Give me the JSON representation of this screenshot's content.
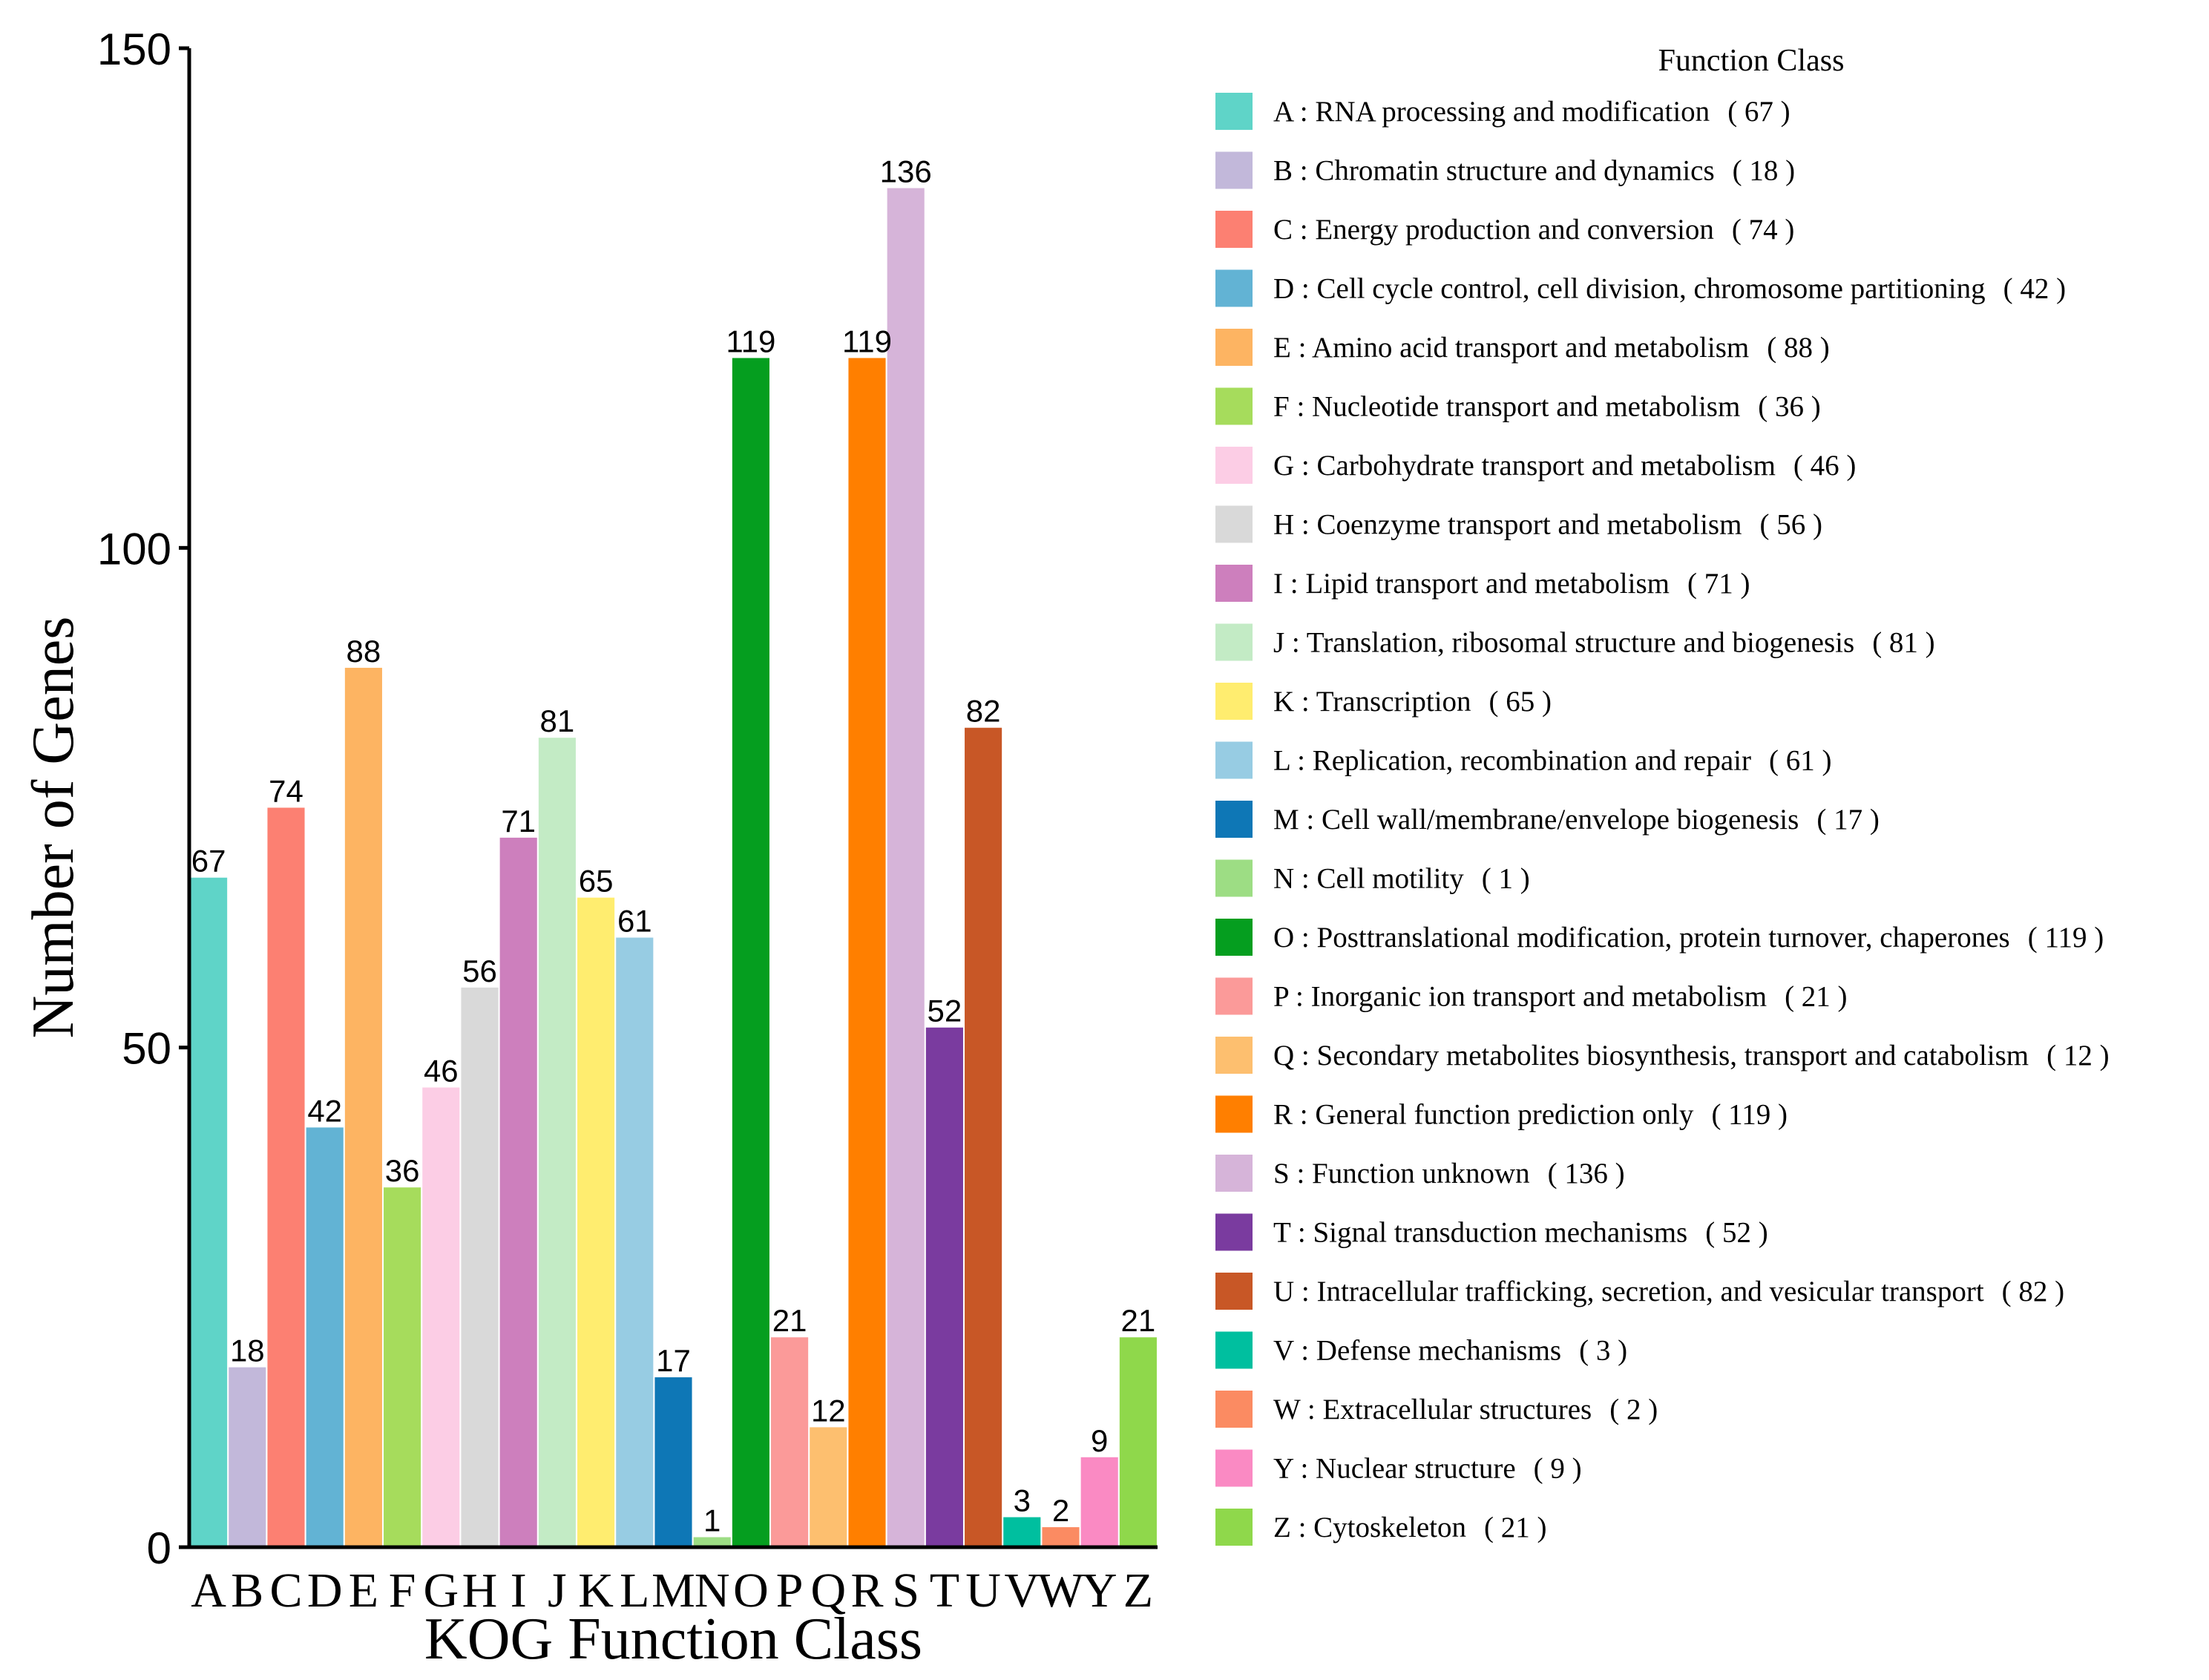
{
  "chart_data": {
    "type": "bar",
    "title": "",
    "xlabel": "KOG Function Class",
    "ylabel": "Number of Genes",
    "ylim": [
      0,
      150
    ],
    "yticks": [
      0,
      50,
      100,
      150
    ],
    "legend_title": "Function Class",
    "legend_position": "right",
    "categories": [
      "A",
      "B",
      "C",
      "D",
      "E",
      "F",
      "G",
      "H",
      "I",
      "J",
      "K",
      "L",
      "M",
      "N",
      "O",
      "P",
      "Q",
      "R",
      "S",
      "T",
      "U",
      "V",
      "W",
      "Y",
      "Z"
    ],
    "values": [
      67,
      18,
      74,
      42,
      88,
      36,
      46,
      56,
      71,
      81,
      65,
      61,
      17,
      1,
      119,
      21,
      12,
      119,
      136,
      52,
      82,
      3,
      2,
      9,
      21
    ],
    "descriptions": [
      "A : RNA processing and modification",
      "B : Chromatin structure and dynamics",
      "C : Energy production and conversion",
      "D : Cell cycle control, cell division, chromosome partitioning",
      "E : Amino acid transport and metabolism",
      "F : Nucleotide transport and metabolism",
      "G : Carbohydrate transport and metabolism",
      "H : Coenzyme transport and metabolism",
      "I : Lipid transport and metabolism",
      "J : Translation, ribosomal structure and biogenesis",
      "K : Transcription",
      "L : Replication, recombination and repair",
      "M : Cell wall/membrane/envelope biogenesis",
      "N : Cell motility",
      "O : Posttranslational modification, protein turnover, chaperones",
      "P : Inorganic ion transport and metabolism",
      "Q : Secondary metabolites biosynthesis, transport and catabolism",
      "R : General function prediction only",
      "S : Function unknown",
      "T : Signal transduction mechanisms",
      "U : Intracellular trafficking, secretion, and vesicular transport",
      "V : Defense mechanisms",
      "W : Extracellular structures",
      "Y : Nuclear structure",
      "Z : Cytoskeleton"
    ],
    "colors": [
      "#5fd4c8",
      "#c2b8da",
      "#fc8072",
      "#62b3d4",
      "#fdb462",
      "#a6dc5c",
      "#fccde5",
      "#d9d9d9",
      "#cd7fbd",
      "#c3ebc5",
      "#ffed6f",
      "#97cce3",
      "#0e77b6",
      "#9ddd84",
      "#059e1f",
      "#fb9a99",
      "#fdbf6f",
      "#ff7f00",
      "#d6b4d9",
      "#7a3b9f",
      "#c85726",
      "#00bf9f",
      "#fb8b62",
      "#fa8ac3",
      "#8fd84b"
    ]
  }
}
